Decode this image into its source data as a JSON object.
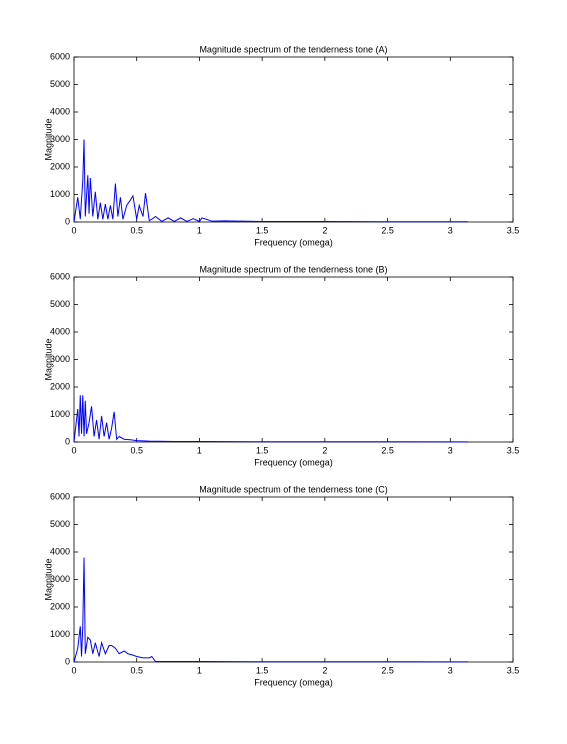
{
  "chart_data": [
    {
      "type": "line",
      "title": "Magnitude spectrum of the tenderness tone (A)",
      "xlabel": "Frequency (omega)",
      "ylabel": "Magnitude",
      "x": [
        0,
        0.03,
        0.05,
        0.07,
        0.08,
        0.09,
        0.11,
        0.12,
        0.13,
        0.15,
        0.17,
        0.19,
        0.21,
        0.23,
        0.25,
        0.27,
        0.29,
        0.31,
        0.33,
        0.35,
        0.37,
        0.39,
        0.42,
        0.45,
        0.47,
        0.5,
        0.52,
        0.55,
        0.57,
        0.6,
        0.62,
        0.65,
        0.7,
        0.75,
        0.8,
        0.85,
        0.9,
        0.95,
        1.0,
        1.02,
        1.1,
        1.2,
        1.5,
        2.0,
        2.5,
        3.14
      ],
      "values": [
        0,
        900,
        100,
        1500,
        3000,
        200,
        1700,
        300,
        1600,
        200,
        1100,
        100,
        700,
        100,
        650,
        100,
        600,
        100,
        1400,
        200,
        900,
        100,
        600,
        800,
        950,
        100,
        600,
        200,
        1050,
        50,
        100,
        200,
        20,
        150,
        20,
        150,
        20,
        120,
        20,
        150,
        30,
        40,
        20,
        20,
        10,
        10
      ],
      "color": "#0000ff",
      "xlim": [
        0,
        3.5
      ],
      "ylim": [
        0,
        6000
      ],
      "xticks": [
        0,
        0.5,
        1,
        1.5,
        2,
        2.5,
        3,
        3.5
      ],
      "yticks": [
        0,
        1000,
        2000,
        3000,
        4000,
        5000,
        6000
      ]
    },
    {
      "type": "line",
      "title": "Magnitude spectrum of the tenderness tone  (B)",
      "xlabel": "Frequency (omega)",
      "ylabel": "Magnitude",
      "x": [
        0,
        0.03,
        0.04,
        0.05,
        0.06,
        0.07,
        0.08,
        0.09,
        0.1,
        0.12,
        0.14,
        0.16,
        0.18,
        0.2,
        0.22,
        0.24,
        0.26,
        0.28,
        0.3,
        0.32,
        0.34,
        0.36,
        0.4,
        0.45,
        0.5,
        0.6,
        0.8,
        1.0,
        1.5,
        2.0,
        3.14
      ],
      "values": [
        0,
        1200,
        200,
        1700,
        300,
        1700,
        200,
        1500,
        300,
        700,
        1300,
        200,
        800,
        100,
        950,
        200,
        700,
        100,
        500,
        1100,
        100,
        200,
        100,
        80,
        50,
        30,
        20,
        20,
        10,
        10,
        5
      ],
      "color": "#0000ff",
      "xlim": [
        0,
        3.5
      ],
      "ylim": [
        0,
        6000
      ],
      "xticks": [
        0,
        0.5,
        1,
        1.5,
        2,
        2.5,
        3,
        3.5
      ],
      "yticks": [
        0,
        1000,
        2000,
        3000,
        4000,
        5000,
        6000
      ]
    },
    {
      "type": "line",
      "title": "Magnitude spectrum of the tenderness tone (C)",
      "xlabel": "Frequency (omega)",
      "ylabel": "Magnitude",
      "x": [
        0,
        0.03,
        0.05,
        0.06,
        0.07,
        0.08,
        0.09,
        0.11,
        0.13,
        0.15,
        0.17,
        0.2,
        0.22,
        0.25,
        0.28,
        0.3,
        0.33,
        0.36,
        0.4,
        0.43,
        0.47,
        0.5,
        0.55,
        0.6,
        0.62,
        0.65,
        0.8,
        1.0,
        1.5,
        2.0,
        3.14
      ],
      "values": [
        0,
        500,
        1300,
        200,
        1300,
        3800,
        300,
        900,
        800,
        300,
        700,
        200,
        700,
        300,
        600,
        600,
        500,
        300,
        400,
        300,
        250,
        200,
        150,
        150,
        200,
        20,
        20,
        20,
        10,
        10,
        5
      ],
      "color": "#0000ff",
      "xlim": [
        0,
        3.5
      ],
      "ylim": [
        0,
        6000
      ],
      "xticks": [
        0,
        0.5,
        1,
        1.5,
        2,
        2.5,
        3,
        3.5
      ],
      "yticks": [
        0,
        1000,
        2000,
        3000,
        4000,
        5000,
        6000
      ]
    }
  ]
}
